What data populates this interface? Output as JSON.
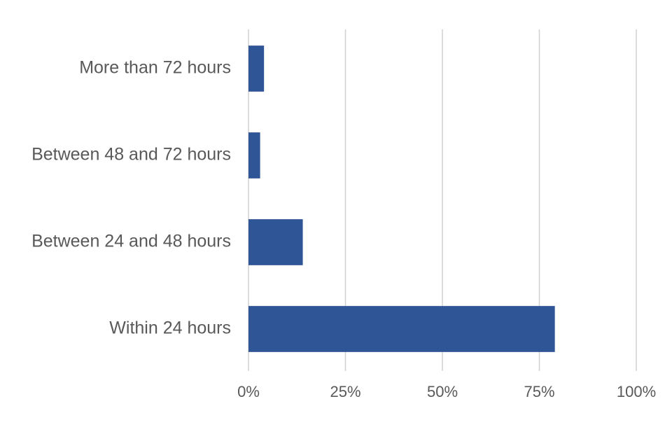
{
  "chart_data": {
    "type": "barh",
    "categories": [
      "More than 72 hours",
      "Between 48 and 72 hours",
      "Between 24 and 48 hours",
      "Within 24 hours"
    ],
    "values": [
      4,
      3,
      14,
      79
    ],
    "color": "#2f5597",
    "xlim": [
      0,
      100
    ],
    "xticks": [
      {
        "value": 0,
        "label": "0%"
      },
      {
        "value": 25,
        "label": "25%"
      },
      {
        "value": 50,
        "label": "50%"
      },
      {
        "value": 75,
        "label": "75%"
      },
      {
        "value": 100,
        "label": "100%"
      }
    ],
    "grid": true
  }
}
